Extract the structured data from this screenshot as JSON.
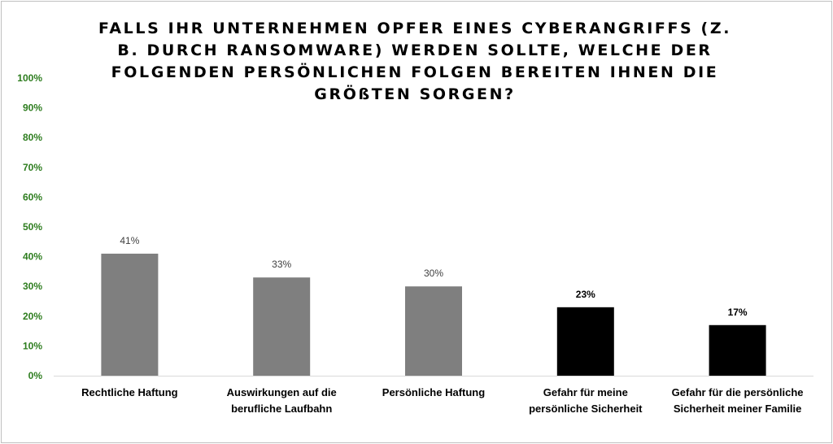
{
  "chart_data": {
    "type": "bar",
    "title": "FALLS IHR UNTERNEHMEN OPFER EINES CYBERANGRIFFS (Z. B. DURCH RANSOMWARE) WERDEN SOLLTE, WELCHE DER FOLGENDEN PERSÖNLICHEN FOLGEN BEREITEN IHNEN DIE GRÖßTEN SORGEN?",
    "categories": [
      [
        "Rechtliche Haftung"
      ],
      [
        "Auswirkungen auf die",
        "berufliche Laufbahn"
      ],
      [
        "Persönliche Haftung"
      ],
      [
        "Gefahr für meine",
        "persönliche Sicherheit"
      ],
      [
        "Gefahr für die persönliche",
        "Sicherheit meiner Familie"
      ]
    ],
    "values": [
      41,
      33,
      30,
      23,
      17
    ],
    "value_labels": [
      "41%",
      "33%",
      "30%",
      "23%",
      "17%"
    ],
    "bar_colors": [
      "#7f7f7f",
      "#7f7f7f",
      "#7f7f7f",
      "#000000",
      "#000000"
    ],
    "label_colors": [
      "#404040",
      "#404040",
      "#404040",
      "#000000",
      "#000000"
    ],
    "label_bold": [
      false,
      false,
      false,
      true,
      true
    ],
    "ylim": [
      0,
      100
    ],
    "yticks": [
      0,
      10,
      20,
      30,
      40,
      50,
      60,
      70,
      80,
      90,
      100
    ],
    "ytick_suffix": "%",
    "ytick_color": "#2e7d1f",
    "axis_color": "#d9d9d9",
    "grid": false,
    "xlabel": "",
    "ylabel": ""
  }
}
